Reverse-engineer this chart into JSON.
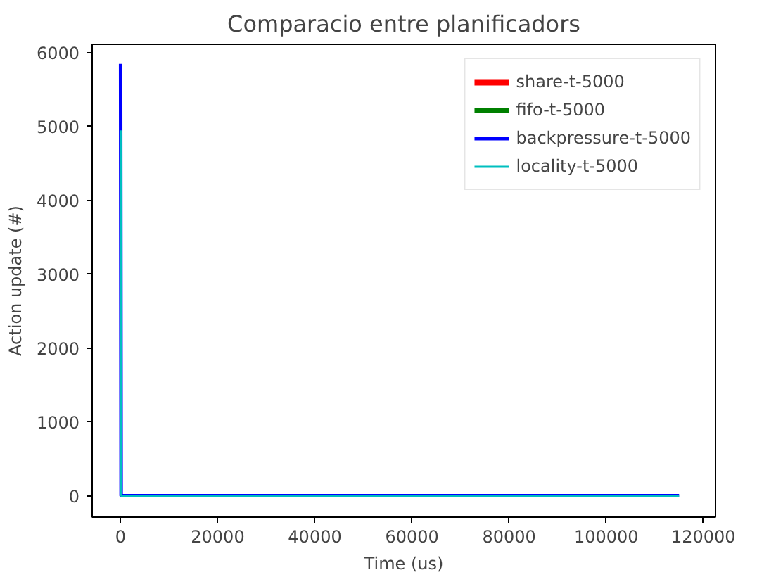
{
  "chart_data": {
    "type": "line",
    "title": "Comparacio entre planificadors",
    "xlabel": "Time (us)",
    "ylabel": "Action update (#)",
    "x": [
      0,
      100,
      115000
    ],
    "series": [
      {
        "name": "share-t-5000",
        "color": "#ff0000",
        "values": [
          null,
          null,
          null
        ]
      },
      {
        "name": "fifo-t-5000",
        "color": "#008000",
        "values": [
          null,
          null,
          null
        ]
      },
      {
        "name": "backpressure-t-5000",
        "color": "#0000ff",
        "values": [
          5850,
          0,
          0
        ]
      },
      {
        "name": "locality-t-5000",
        "color": "#00bfbf",
        "values": [
          4950,
          0,
          0
        ]
      }
    ],
    "xlim": [
      -5860,
      122500
    ],
    "ylim": [
      -290,
      6115
    ],
    "xticks": [
      0,
      20000,
      40000,
      60000,
      80000,
      100000,
      120000
    ],
    "yticks": [
      0,
      1000,
      2000,
      3000,
      4000,
      5000,
      6000
    ],
    "legend": "top right",
    "grid": false,
    "marker": "none",
    "line_style": "solid"
  }
}
